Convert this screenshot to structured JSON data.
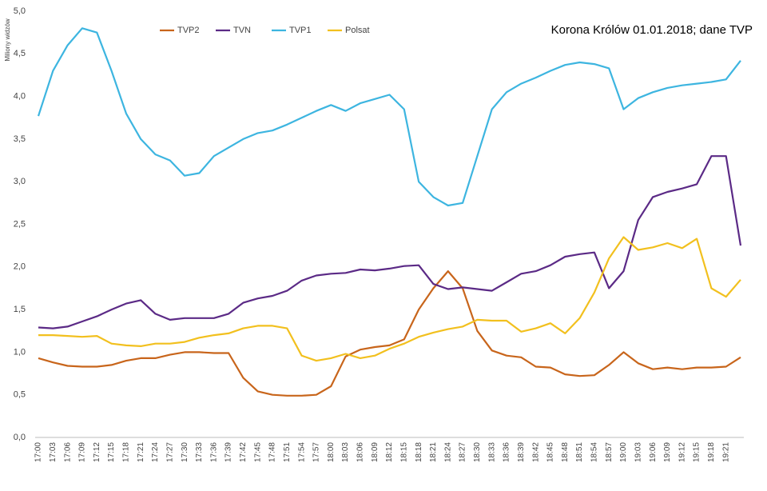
{
  "chart_data": {
    "type": "line",
    "title": "Korona Królów 01.01.2018; dane TVP",
    "y_label": "Miliony widzów",
    "categories": [
      "17:00",
      "17:03",
      "17:06",
      "17:09",
      "17:12",
      "17:15",
      "17:18",
      "17:21",
      "17:24",
      "17:27",
      "17:30",
      "17:33",
      "17:36",
      "17:39",
      "17:42",
      "17:45",
      "17:48",
      "17:51",
      "17:54",
      "17:57",
      "18:00",
      "18:03",
      "18:06",
      "18:09",
      "18:12",
      "18:15",
      "18:18",
      "18:21",
      "18:24",
      "18:27",
      "18:30",
      "18:33",
      "18:36",
      "18:39",
      "18:42",
      "18:45",
      "18:48",
      "18:51",
      "18:54",
      "18:57",
      "19:00",
      "19:03",
      "19:06",
      "19:09",
      "19:12",
      "19:15",
      "19:18",
      "19:21",
      null
    ],
    "series": [
      {
        "name": "TVP2",
        "color": "#c8651b",
        "values": [
          0.93,
          0.88,
          0.84,
          0.83,
          0.83,
          0.85,
          0.9,
          0.93,
          0.93,
          0.97,
          1.0,
          1.0,
          0.99,
          0.99,
          0.7,
          0.54,
          0.5,
          0.49,
          0.49,
          0.5,
          0.6,
          0.95,
          1.03,
          1.06,
          1.08,
          1.15,
          1.5,
          1.75,
          1.95,
          1.75,
          1.25,
          1.02,
          0.96,
          0.94,
          0.83,
          0.82,
          0.74,
          0.72,
          0.73,
          0.85,
          1.0,
          0.87,
          0.8,
          0.82,
          0.8,
          0.82,
          0.82,
          0.83,
          0.94
        ]
      },
      {
        "name": "TVN",
        "color": "#5b2a86",
        "values": [
          1.29,
          1.28,
          1.3,
          1.36,
          1.42,
          1.5,
          1.57,
          1.61,
          1.45,
          1.38,
          1.4,
          1.4,
          1.4,
          1.45,
          1.58,
          1.63,
          1.66,
          1.72,
          1.84,
          1.9,
          1.92,
          1.93,
          1.97,
          1.96,
          1.98,
          2.01,
          2.02,
          1.8,
          1.74,
          1.76,
          1.74,
          1.72,
          1.82,
          1.92,
          1.95,
          2.02,
          2.12,
          2.15,
          2.17,
          1.75,
          1.95,
          2.55,
          2.82,
          2.88,
          2.92,
          2.97,
          3.3,
          3.3,
          2.25
        ]
      },
      {
        "name": "TVP1",
        "color": "#3db5e0",
        "values": [
          3.77,
          4.3,
          4.6,
          4.8,
          4.75,
          4.3,
          3.8,
          3.5,
          3.32,
          3.25,
          3.07,
          3.1,
          3.3,
          3.4,
          3.5,
          3.57,
          3.6,
          3.67,
          3.75,
          3.83,
          3.9,
          3.83,
          3.92,
          3.97,
          4.02,
          3.85,
          3.0,
          2.82,
          2.72,
          2.75,
          3.3,
          3.85,
          4.05,
          4.15,
          4.22,
          4.3,
          4.37,
          4.4,
          4.38,
          4.33,
          3.85,
          3.98,
          4.05,
          4.1,
          4.13,
          4.15,
          4.17,
          4.2,
          4.42
        ]
      },
      {
        "name": "Polsat",
        "color": "#f2c01e",
        "values": [
          1.2,
          1.2,
          1.19,
          1.18,
          1.19,
          1.1,
          1.08,
          1.07,
          1.1,
          1.1,
          1.12,
          1.17,
          1.2,
          1.22,
          1.28,
          1.31,
          1.31,
          1.28,
          0.96,
          0.9,
          0.93,
          0.98,
          0.93,
          0.96,
          1.04,
          1.1,
          1.18,
          1.23,
          1.27,
          1.3,
          1.38,
          1.37,
          1.37,
          1.24,
          1.28,
          1.34,
          1.22,
          1.4,
          1.7,
          2.1,
          2.35,
          2.2,
          2.23,
          2.28,
          2.22,
          2.33,
          1.75,
          1.65,
          1.85
        ]
      }
    ],
    "ylim": [
      0,
      5
    ],
    "yticks": [
      {
        "value": 0,
        "label": "0,0"
      },
      {
        "value": 0.5,
        "label": "0,5"
      },
      {
        "value": 1,
        "label": "1,0"
      },
      {
        "value": 1.5,
        "label": "1,5"
      },
      {
        "value": 2,
        "label": "2,0"
      },
      {
        "value": 2.5,
        "label": "2,5"
      },
      {
        "value": 3,
        "label": "3,0"
      },
      {
        "value": 3.5,
        "label": "3,5"
      },
      {
        "value": 4,
        "label": "4,0"
      },
      {
        "value": 4.5,
        "label": "4,5"
      },
      {
        "value": 5,
        "label": "5,0"
      }
    ],
    "grid": false
  }
}
